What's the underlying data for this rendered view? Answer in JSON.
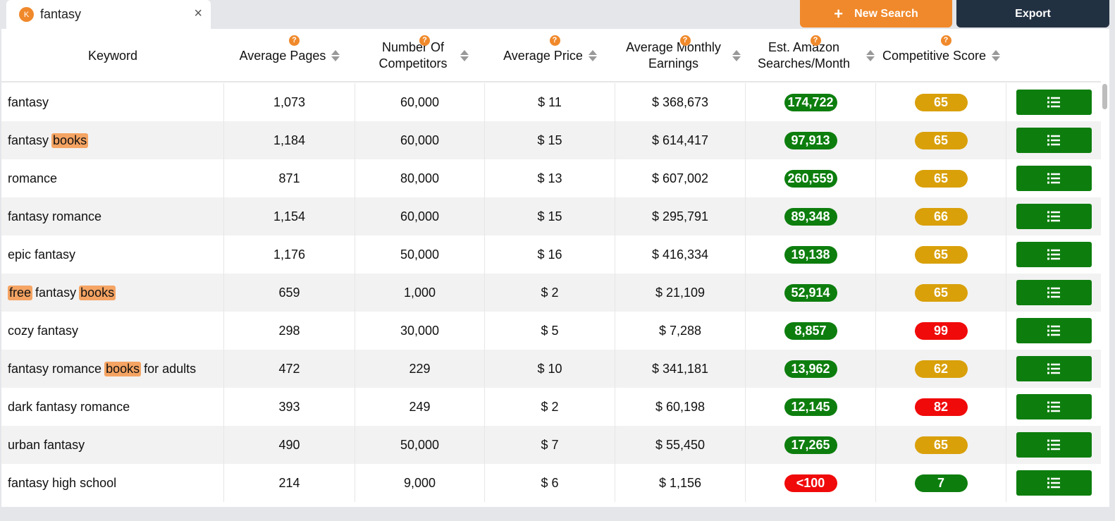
{
  "search_tab": {
    "logo": "K",
    "label": "fantasy",
    "close": "×"
  },
  "toolbar": {
    "new_search_label": "New Search",
    "new_search_icon": "+",
    "export_label": "Export"
  },
  "columns": [
    {
      "key": "keyword",
      "label": "Keyword",
      "help": false,
      "sortable": false
    },
    {
      "key": "pages",
      "label": "Average Pages",
      "help": true,
      "sortable": true
    },
    {
      "key": "competitors",
      "label": "Number Of Competitors",
      "help": true,
      "sortable": true
    },
    {
      "key": "price",
      "label": "Average Price",
      "help": true,
      "sortable": true
    },
    {
      "key": "earnings",
      "label": "Average Monthly Earnings",
      "help": true,
      "sortable": true
    },
    {
      "key": "searches",
      "label": "Est. Amazon Searches/Month",
      "help": true,
      "sortable": true
    },
    {
      "key": "score",
      "label": "Competitive Score",
      "help": true,
      "sortable": true
    }
  ],
  "help_icon": "?",
  "colors": {
    "accent": "#f0892b",
    "dark": "#223142",
    "green": "#0d7e0e",
    "gold": "#d9a00a",
    "red": "#f00a0a",
    "highlight": "#f5a463"
  },
  "rows": [
    {
      "keyword": [
        {
          "t": "fantasy",
          "h": false
        }
      ],
      "pages": "1,073",
      "competitors": "60,000",
      "price": "$ 11",
      "earnings": "$ 368,673",
      "searches": "174,722",
      "searches_color": "green",
      "score": "65",
      "score_color": "gold"
    },
    {
      "keyword": [
        {
          "t": "fantasy ",
          "h": false
        },
        {
          "t": "books",
          "h": true
        }
      ],
      "pages": "1,184",
      "competitors": "60,000",
      "price": "$ 15",
      "earnings": "$ 614,417",
      "searches": "97,913",
      "searches_color": "green",
      "score": "65",
      "score_color": "gold"
    },
    {
      "keyword": [
        {
          "t": "romance",
          "h": false
        }
      ],
      "pages": "871",
      "competitors": "80,000",
      "price": "$ 13",
      "earnings": "$ 607,002",
      "searches": "260,559",
      "searches_color": "green",
      "score": "65",
      "score_color": "gold"
    },
    {
      "keyword": [
        {
          "t": "fantasy romance",
          "h": false
        }
      ],
      "pages": "1,154",
      "competitors": "60,000",
      "price": "$ 15",
      "earnings": "$ 295,791",
      "searches": "89,348",
      "searches_color": "green",
      "score": "66",
      "score_color": "gold"
    },
    {
      "keyword": [
        {
          "t": "epic fantasy",
          "h": false
        }
      ],
      "pages": "1,176",
      "competitors": "50,000",
      "price": "$ 16",
      "earnings": "$ 416,334",
      "searches": "19,138",
      "searches_color": "green",
      "score": "65",
      "score_color": "gold"
    },
    {
      "keyword": [
        {
          "t": "free",
          "h": true
        },
        {
          "t": " fantasy ",
          "h": false
        },
        {
          "t": "books",
          "h": true
        }
      ],
      "pages": "659",
      "competitors": "1,000",
      "price": "$ 2",
      "earnings": "$ 21,109",
      "searches": "52,914",
      "searches_color": "green",
      "score": "65",
      "score_color": "gold"
    },
    {
      "keyword": [
        {
          "t": "cozy fantasy",
          "h": false
        }
      ],
      "pages": "298",
      "competitors": "30,000",
      "price": "$ 5",
      "earnings": "$ 7,288",
      "searches": "8,857",
      "searches_color": "green",
      "score": "99",
      "score_color": "red"
    },
    {
      "keyword": [
        {
          "t": "fantasy romance ",
          "h": false
        },
        {
          "t": "books",
          "h": true
        },
        {
          "t": " for adults",
          "h": false
        }
      ],
      "pages": "472",
      "competitors": "229",
      "price": "$ 10",
      "earnings": "$ 341,181",
      "searches": "13,962",
      "searches_color": "green",
      "score": "62",
      "score_color": "gold"
    },
    {
      "keyword": [
        {
          "t": "dark fantasy romance",
          "h": false
        }
      ],
      "pages": "393",
      "competitors": "249",
      "price": "$ 2",
      "earnings": "$ 60,198",
      "searches": "12,145",
      "searches_color": "green",
      "score": "82",
      "score_color": "red"
    },
    {
      "keyword": [
        {
          "t": "urban fantasy",
          "h": false
        }
      ],
      "pages": "490",
      "competitors": "50,000",
      "price": "$ 7",
      "earnings": "$ 55,450",
      "searches": "17,265",
      "searches_color": "green",
      "score": "65",
      "score_color": "gold"
    },
    {
      "keyword": [
        {
          "t": "fantasy high school",
          "h": false
        }
      ],
      "pages": "214",
      "competitors": "9,000",
      "price": "$ 6",
      "earnings": "$ 1,156",
      "searches": "<100",
      "searches_color": "red",
      "score": "7",
      "score_color": "green"
    }
  ]
}
